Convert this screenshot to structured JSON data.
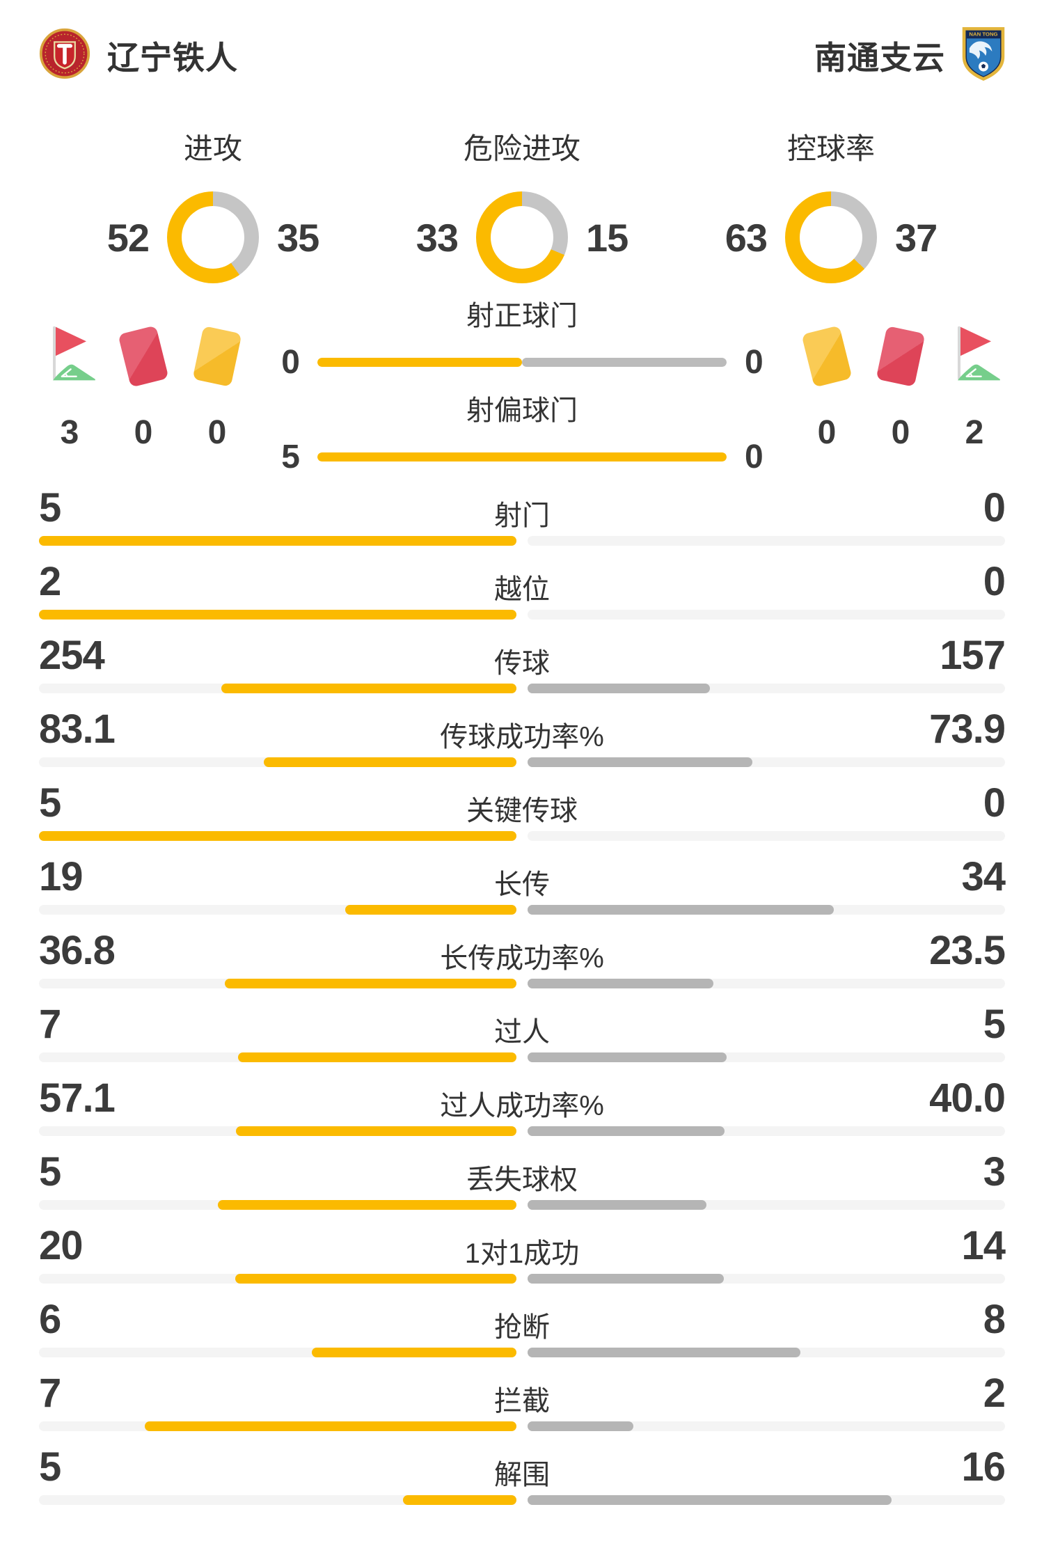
{
  "header": {
    "home": {
      "name": "辽宁铁人"
    },
    "away": {
      "name": "南通支云"
    }
  },
  "donuts": [
    {
      "label": "进攻",
      "home": "52",
      "away": "35"
    },
    {
      "label": "危险进攻",
      "home": "33",
      "away": "15"
    },
    {
      "label": "控球率",
      "home": "63",
      "away": "37"
    }
  ],
  "shots": {
    "rows": [
      {
        "label": "射正球门",
        "home": "0",
        "away": "0"
      },
      {
        "label": "射偏球门",
        "home": "5",
        "away": "0"
      }
    ],
    "home_icons": [
      {
        "icon": "corner-flag",
        "count": "3"
      },
      {
        "icon": "red-card",
        "count": "0"
      },
      {
        "icon": "yellow-card",
        "count": "0"
      }
    ],
    "away_icons": [
      {
        "icon": "yellow-card",
        "count": "0"
      },
      {
        "icon": "red-card",
        "count": "0"
      },
      {
        "icon": "corner-flag",
        "count": "2"
      }
    ]
  },
  "stats": [
    {
      "label": "射门",
      "home": "5",
      "away": "0"
    },
    {
      "label": "越位",
      "home": "2",
      "away": "0"
    },
    {
      "label": "传球",
      "home": "254",
      "away": "157"
    },
    {
      "label": "传球成功率%",
      "home": "83.1",
      "away": "73.9"
    },
    {
      "label": "关键传球",
      "home": "5",
      "away": "0"
    },
    {
      "label": "长传",
      "home": "19",
      "away": "34"
    },
    {
      "label": "长传成功率%",
      "home": "36.8",
      "away": "23.5"
    },
    {
      "label": "过人",
      "home": "7",
      "away": "5"
    },
    {
      "label": "过人成功率%",
      "home": "57.1",
      "away": "40.0"
    },
    {
      "label": "丢失球权",
      "home": "5",
      "away": "3"
    },
    {
      "label": "1对1成功",
      "home": "20",
      "away": "14"
    },
    {
      "label": "抢断",
      "home": "6",
      "away": "8"
    },
    {
      "label": "拦截",
      "home": "7",
      "away": "2"
    },
    {
      "label": "解围",
      "home": "5",
      "away": "16"
    }
  ],
  "colors": {
    "home_fill": "#FBBA00",
    "away_fill": "#B5B5B5",
    "bar_away_solid": "#BBBBBB",
    "track": "#F4F4F4",
    "donut_away": "#C5C5C5",
    "text": "#333333",
    "number": "#3B3B3B"
  }
}
